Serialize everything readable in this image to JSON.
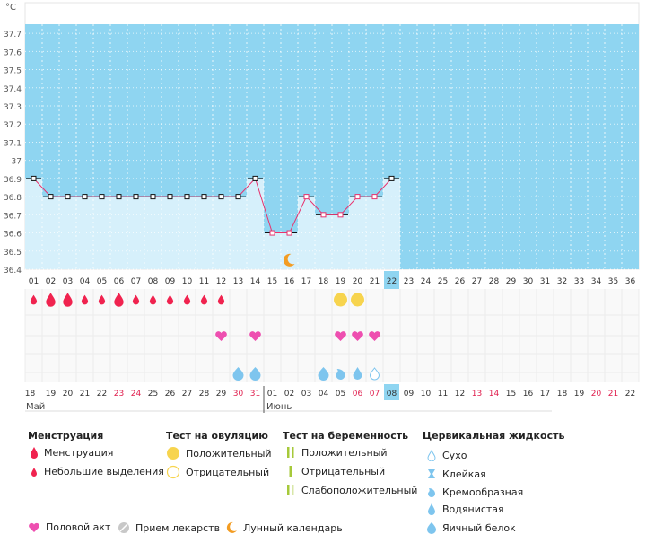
{
  "chart_data": {
    "type": "line",
    "unit_label": "°C",
    "y_ticks": [
      "36.4",
      "36.5",
      "36.6",
      "36.7",
      "36.8",
      "36.9",
      "37",
      "37.1",
      "37.2",
      "37.3",
      "37.4",
      "37.5",
      "37.6",
      "37.7"
    ],
    "ylim": [
      36.4,
      37.75
    ],
    "cycle_days": [
      "01",
      "02",
      "03",
      "04",
      "05",
      "06",
      "07",
      "08",
      "09",
      "10",
      "11",
      "12",
      "13",
      "14",
      "15",
      "16",
      "17",
      "18",
      "19",
      "20",
      "21",
      "22",
      "23",
      "24",
      "25",
      "26",
      "27",
      "28",
      "29",
      "30",
      "31",
      "32",
      "33",
      "34",
      "35",
      "36"
    ],
    "current_cycle_day": "22",
    "temperatures": [
      36.9,
      36.8,
      36.8,
      36.8,
      36.8,
      36.8,
      36.8,
      36.8,
      36.8,
      36.8,
      36.8,
      36.8,
      36.8,
      36.9,
      36.6,
      36.6,
      36.8,
      36.7,
      36.7,
      36.8,
      36.8,
      36.9
    ],
    "coverline_segments": [
      [
        0,
        0
      ],
      [
        1,
        12
      ],
      [
        13,
        13
      ],
      [
        14,
        15
      ],
      [
        16,
        16
      ],
      [
        17,
        18
      ],
      [
        19,
        20
      ],
      [
        21,
        21
      ]
    ],
    "calendar_dates": [
      "18",
      "19",
      "20",
      "21",
      "22",
      "23",
      "24",
      "25",
      "26",
      "27",
      "28",
      "29",
      "30",
      "31",
      "01",
      "02",
      "03",
      "04",
      "05",
      "06",
      "07",
      "08",
      "09",
      "10",
      "11",
      "12",
      "13",
      "14",
      "15",
      "16",
      "17",
      "18",
      "19",
      "20",
      "21",
      "22"
    ],
    "weekend_date_indices": [
      5,
      6,
      12,
      13,
      19,
      20,
      26,
      27,
      33,
      34
    ],
    "today_date_index": 21,
    "months": [
      {
        "name": "Май",
        "start_index": 0
      },
      {
        "name": "Июнь",
        "start_index": 14
      }
    ],
    "menstruation": [
      {
        "day": 0,
        "type": "light"
      },
      {
        "day": 1,
        "type": "heavy"
      },
      {
        "day": 2,
        "type": "heavy"
      },
      {
        "day": 3,
        "type": "light"
      },
      {
        "day": 4,
        "type": "light"
      },
      {
        "day": 5,
        "type": "heavy"
      },
      {
        "day": 6,
        "type": "light"
      },
      {
        "day": 7,
        "type": "light"
      },
      {
        "day": 8,
        "type": "light"
      },
      {
        "day": 9,
        "type": "light"
      },
      {
        "day": 10,
        "type": "light"
      },
      {
        "day": 11,
        "type": "light"
      }
    ],
    "ovulation_tests": [
      {
        "day": 18,
        "result": "positive"
      },
      {
        "day": 19,
        "result": "positive"
      }
    ],
    "intercourse_days": [
      11,
      13,
      18,
      19,
      20
    ],
    "cervical_fluid": [
      {
        "day": 12,
        "type": "egg-white"
      },
      {
        "day": 13,
        "type": "egg-white"
      },
      {
        "day": 17,
        "type": "egg-white"
      },
      {
        "day": 18,
        "type": "creamy"
      },
      {
        "day": 19,
        "type": "watery"
      },
      {
        "day": 20,
        "type": "dry"
      }
    ],
    "moon_day": 15
  },
  "legend": {
    "menstruation": {
      "title": "Менструация",
      "heavy": "Менструация",
      "light": "Небольшие выделения"
    },
    "ovulation": {
      "title": "Тест на овуляцию",
      "positive": "Положительный",
      "negative": "Отрицательный"
    },
    "pregnancy": {
      "title": "Тест на беременность",
      "positive": "Положительный",
      "negative": "Отрицательный",
      "weak": "Слабоположительный"
    },
    "fluid": {
      "title": "Цервикальная жидкость",
      "dry": "Сухо",
      "sticky": "Клейкая",
      "creamy": "Кремообразная",
      "watery": "Водянистая",
      "egg_white": "Яичный белок"
    },
    "bottom": {
      "intercourse": "Половой акт",
      "medication": "Прием лекарств",
      "moon": "Лунный календарь"
    }
  },
  "colors": {
    "pink": "#e8336e",
    "red": "#f0234f",
    "heart": "#ee4fb0",
    "sky": "#8fd5f1",
    "pale": "#d6f0fb",
    "drop": "#7ec5ee",
    "yellow": "#f7d44e",
    "green": "#a6c93a",
    "moon": "#f39c22"
  }
}
